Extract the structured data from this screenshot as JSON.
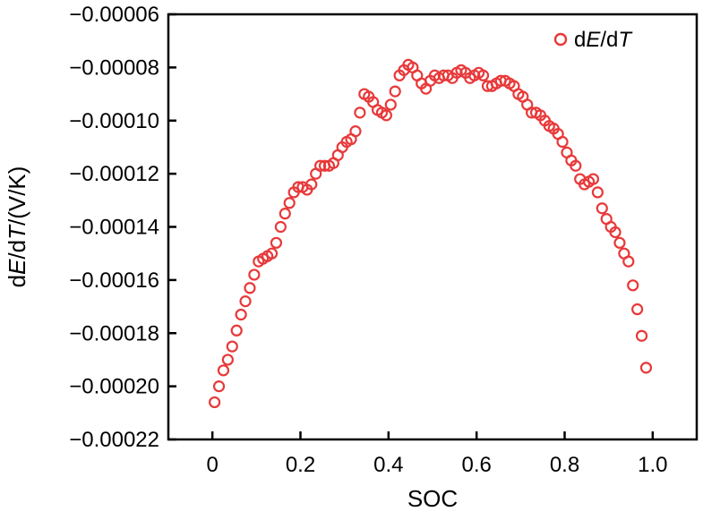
{
  "chart_data": {
    "type": "scatter",
    "title": "",
    "xlabel": "SOC",
    "ylabel_parts": [
      {
        "text": "d",
        "italic": false
      },
      {
        "text": "E",
        "italic": true
      },
      {
        "text": "/d",
        "italic": false
      },
      {
        "text": "T",
        "italic": true
      },
      {
        "text": "/(V/K)",
        "italic": false
      }
    ],
    "xlim": [
      -0.1,
      1.1
    ],
    "ylim": [
      -0.00022,
      -6e-05
    ],
    "xticks": [
      0,
      0.2,
      0.4,
      0.6,
      0.8,
      1.0
    ],
    "xtick_labels": [
      "0",
      "0.2",
      "0.4",
      "0.6",
      "0.8",
      "1.0"
    ],
    "yticks": [
      -0.00022,
      -0.0002,
      -0.00018,
      -0.00016,
      -0.00014,
      -0.00012,
      -0.0001,
      -8e-05,
      -6e-05
    ],
    "ytick_labels": [
      "−0.00022",
      "−0.00020",
      "−0.00018",
      "−0.00016",
      "−0.00014",
      "−0.00012",
      "−0.00010",
      "−0.00008",
      "−0.00006"
    ],
    "grid": false,
    "legend_position": "top-right",
    "series": [
      {
        "name_parts": [
          {
            "text": "d",
            "italic": false
          },
          {
            "text": "E",
            "italic": true
          },
          {
            "text": "/d",
            "italic": false
          },
          {
            "text": "T",
            "italic": true
          }
        ],
        "marker": "open-circle",
        "color": "#e8393a",
        "x": [
          0.005,
          0.015,
          0.025,
          0.035,
          0.045,
          0.055,
          0.065,
          0.075,
          0.085,
          0.095,
          0.105,
          0.115,
          0.125,
          0.135,
          0.145,
          0.155,
          0.165,
          0.175,
          0.185,
          0.195,
          0.205,
          0.215,
          0.225,
          0.235,
          0.245,
          0.255,
          0.265,
          0.275,
          0.285,
          0.295,
          0.305,
          0.315,
          0.325,
          0.335,
          0.345,
          0.355,
          0.365,
          0.375,
          0.385,
          0.395,
          0.405,
          0.415,
          0.425,
          0.435,
          0.445,
          0.455,
          0.465,
          0.475,
          0.485,
          0.495,
          0.505,
          0.515,
          0.525,
          0.535,
          0.545,
          0.555,
          0.565,
          0.575,
          0.585,
          0.595,
          0.605,
          0.615,
          0.625,
          0.635,
          0.645,
          0.655,
          0.665,
          0.675,
          0.685,
          0.695,
          0.705,
          0.715,
          0.725,
          0.735,
          0.745,
          0.755,
          0.765,
          0.775,
          0.785,
          0.795,
          0.805,
          0.815,
          0.825,
          0.835,
          0.845,
          0.855,
          0.865,
          0.875,
          0.885,
          0.895,
          0.905,
          0.915,
          0.925,
          0.935,
          0.945,
          0.955,
          0.965,
          0.975,
          0.985
        ],
        "y": [
          -0.000206,
          -0.0002,
          -0.000194,
          -0.00019,
          -0.000185,
          -0.000179,
          -0.000173,
          -0.000168,
          -0.000163,
          -0.000158,
          -0.000153,
          -0.000152,
          -0.000151,
          -0.00015,
          -0.000146,
          -0.00014,
          -0.000135,
          -0.000131,
          -0.000127,
          -0.000125,
          -0.000125,
          -0.000126,
          -0.000124,
          -0.00012,
          -0.000117,
          -0.000117,
          -0.000117,
          -0.000116,
          -0.000113,
          -0.00011,
          -0.000108,
          -0.000107,
          -0.000104,
          -9.7e-05,
          -9e-05,
          -9.1e-05,
          -9.3e-05,
          -9.6e-05,
          -9.7e-05,
          -9.8e-05,
          -9.4e-05,
          -8.9e-05,
          -8.3e-05,
          -8.1e-05,
          -7.9e-05,
          -8e-05,
          -8.3e-05,
          -8.6e-05,
          -8.8e-05,
          -8.5e-05,
          -8.3e-05,
          -8.4e-05,
          -8.3e-05,
          -8.3e-05,
          -8.4e-05,
          -8.2e-05,
          -8.1e-05,
          -8.2e-05,
          -8.4e-05,
          -8.3e-05,
          -8.2e-05,
          -8.3e-05,
          -8.7e-05,
          -8.7e-05,
          -8.6e-05,
          -8.5e-05,
          -8.5e-05,
          -8.6e-05,
          -8.7e-05,
          -9e-05,
          -9.1e-05,
          -9.4e-05,
          -9.7e-05,
          -9.7e-05,
          -9.8e-05,
          -0.0001,
          -0.000102,
          -0.000103,
          -0.000105,
          -0.000108,
          -0.000112,
          -0.000115,
          -0.000117,
          -0.000122,
          -0.000124,
          -0.000123,
          -0.000122,
          -0.000127,
          -0.000133,
          -0.000137,
          -0.00014,
          -0.000142,
          -0.000146,
          -0.00015,
          -0.000153,
          -0.000162,
          -0.000171,
          -0.000181,
          -0.000193
        ]
      }
    ]
  }
}
